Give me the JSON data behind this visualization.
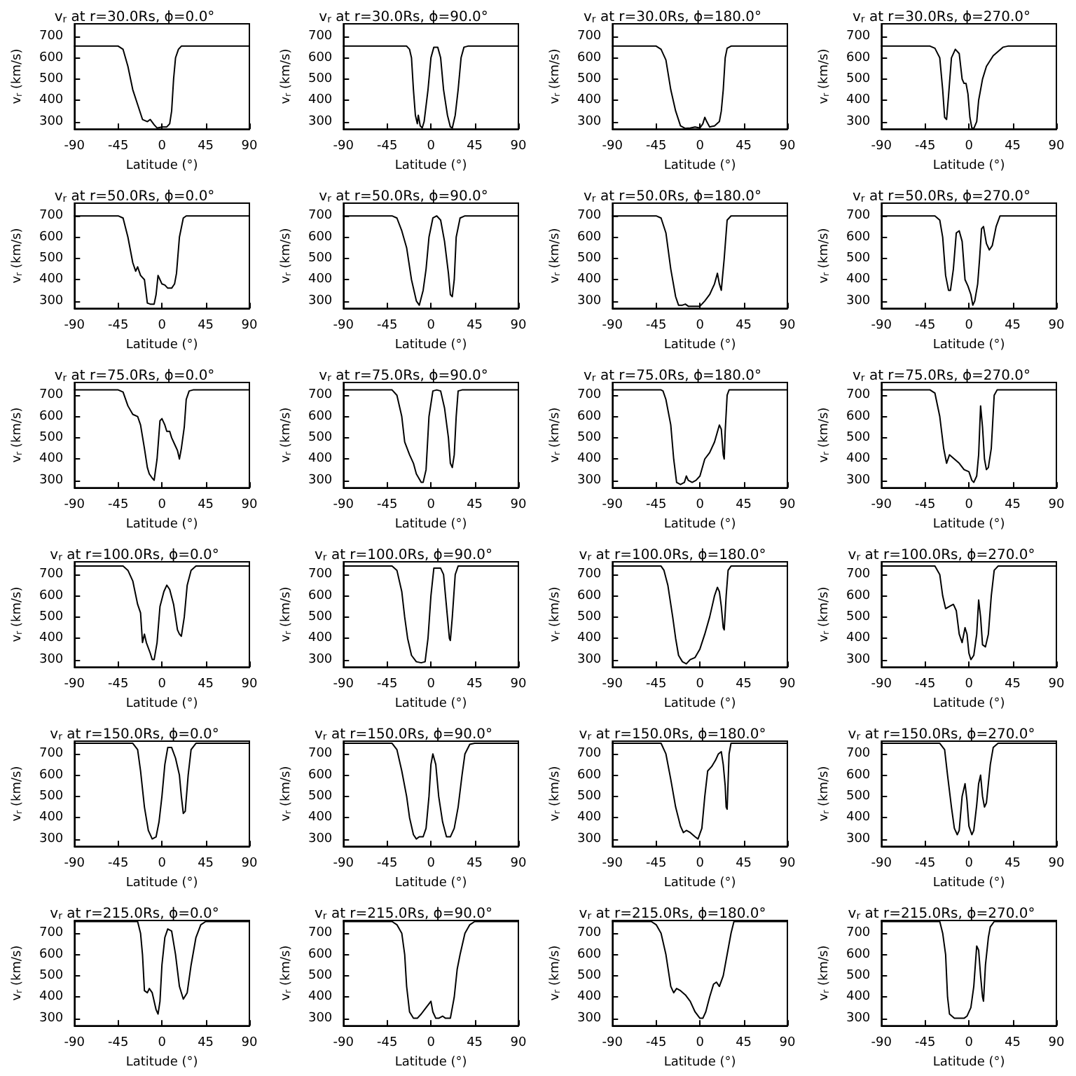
{
  "chart_data": [
    {
      "type": "line",
      "title": "v$_{r}$ at r=30.0Rs, ϕ=0.0°",
      "xlabel": "Latitude (°)",
      "ylabel": "v$_{r}$ (km/s)",
      "xlim": [
        -90,
        90
      ],
      "xticks": [
        -90,
        -45,
        0,
        45,
        90
      ],
      "ylim": [
        265,
        760
      ],
      "yticks": [
        300,
        400,
        500,
        600,
        700
      ],
      "marker": "none",
      "color": "#000000",
      "x": [
        -90,
        -45,
        -40,
        -35,
        -30,
        -25,
        -20,
        -15,
        -12,
        -8,
        -5,
        0,
        5,
        8,
        10,
        12,
        14,
        17,
        20,
        90
      ],
      "values": [
        655,
        655,
        640,
        560,
        450,
        380,
        310,
        300,
        310,
        285,
        270,
        275,
        275,
        290,
        350,
        500,
        600,
        640,
        655,
        655
      ]
    },
    {
      "type": "line",
      "title": "v$_{r}$ at r=30.0Rs, ϕ=90.0°",
      "xlabel": "Latitude (°)",
      "ylabel": "v$_{r}$ (km/s)",
      "xlim": [
        -90,
        90
      ],
      "xticks": [
        -90,
        -45,
        0,
        45,
        90
      ],
      "ylim": [
        265,
        760
      ],
      "yticks": [
        300,
        400,
        500,
        600,
        700
      ],
      "marker": "none",
      "color": "#000000",
      "x": [
        -90,
        -25,
        -22,
        -20,
        -18,
        -16,
        -14,
        -13,
        -11,
        -9,
        -7,
        -3,
        0,
        3,
        7,
        10,
        13,
        17,
        20,
        22,
        25,
        28,
        31,
        34,
        38,
        90
      ],
      "values": [
        655,
        655,
        640,
        600,
        450,
        330,
        290,
        330,
        280,
        270,
        300,
        450,
        600,
        650,
        650,
        600,
        450,
        330,
        275,
        270,
        330,
        450,
        600,
        650,
        655,
        655
      ]
    },
    {
      "type": "line",
      "title": "v$_{r}$ at r=30.0Rs, ϕ=180.0°",
      "xlabel": "Latitude (°)",
      "ylabel": "v$_{r}$ (km/s)",
      "xlim": [
        -90,
        90
      ],
      "xticks": [
        -90,
        -45,
        0,
        45,
        90
      ],
      "ylim": [
        265,
        760
      ],
      "yticks": [
        300,
        400,
        500,
        600,
        700
      ],
      "marker": "none",
      "color": "#000000",
      "x": [
        -90,
        -45,
        -40,
        -35,
        -30,
        -25,
        -20,
        -15,
        -10,
        -5,
        0,
        3,
        5,
        7,
        10,
        15,
        20,
        22,
        24,
        26,
        28,
        32,
        90
      ],
      "values": [
        655,
        655,
        640,
        590,
        450,
        350,
        280,
        268,
        270,
        275,
        270,
        290,
        320,
        300,
        275,
        280,
        300,
        350,
        450,
        600,
        645,
        655,
        655
      ]
    },
    {
      "type": "line",
      "title": "v$_{r}$ at r=30.0Rs, ϕ=270.0°",
      "xlabel": "Latitude (°)",
      "ylabel": "v$_{r}$ (km/s)",
      "xlim": [
        -90,
        90
      ],
      "xticks": [
        -90,
        -45,
        0,
        45,
        90
      ],
      "ylim": [
        265,
        760
      ],
      "yticks": [
        300,
        400,
        500,
        600,
        700
      ],
      "marker": "none",
      "color": "#000000",
      "x": [
        -90,
        -40,
        -35,
        -30,
        -27,
        -25,
        -23,
        -21,
        -18,
        -14,
        -10,
        -7,
        -5,
        -3,
        -1,
        1,
        3,
        5,
        8,
        10,
        14,
        18,
        25,
        35,
        40,
        90
      ],
      "values": [
        655,
        655,
        645,
        600,
        450,
        320,
        310,
        420,
        600,
        640,
        620,
        500,
        480,
        480,
        430,
        320,
        270,
        268,
        300,
        400,
        500,
        560,
        610,
        650,
        655,
        655
      ]
    },
    {
      "type": "line",
      "title": "v$_{r}$ at r=50.0Rs, ϕ=0.0°",
      "xlabel": "Latitude (°)",
      "ylabel": "v$_{r}$ (km/s)",
      "xlim": [
        -90,
        90
      ],
      "xticks": [
        -90,
        -45,
        0,
        45,
        90
      ],
      "ylim": [
        265,
        760
      ],
      "yticks": [
        300,
        400,
        500,
        600,
        700
      ],
      "marker": "none",
      "color": "#000000",
      "x": [
        -90,
        -45,
        -40,
        -35,
        -30,
        -27,
        -25,
        -22,
        -18,
        -15,
        -12,
        -8,
        -6,
        -4,
        -2,
        0,
        3,
        6,
        10,
        13,
        15,
        18,
        22,
        25,
        90
      ],
      "values": [
        700,
        700,
        690,
        600,
        480,
        440,
        460,
        420,
        400,
        290,
        285,
        285,
        330,
        420,
        400,
        380,
        375,
        360,
        360,
        380,
        430,
        600,
        690,
        700,
        700
      ]
    },
    {
      "type": "line",
      "title": "v$_{r}$ at r=50.0Rs, ϕ=90.0°",
      "xlabel": "Latitude (°)",
      "ylabel": "v$_{r}$ (km/s)",
      "xlim": [
        -90,
        90
      ],
      "xticks": [
        -90,
        -45,
        0,
        45,
        90
      ],
      "ylim": [
        265,
        760
      ],
      "yticks": [
        300,
        400,
        500,
        600,
        700
      ],
      "marker": "none",
      "color": "#000000",
      "x": [
        -90,
        -40,
        -35,
        -30,
        -25,
        -20,
        -15,
        -12,
        -8,
        -5,
        -2,
        2,
        6,
        10,
        14,
        18,
        20,
        22,
        24,
        26,
        30,
        35,
        90
      ],
      "values": [
        700,
        700,
        690,
        630,
        550,
        400,
        300,
        280,
        350,
        450,
        600,
        690,
        700,
        680,
        580,
        430,
        330,
        320,
        400,
        600,
        690,
        700,
        700
      ]
    },
    {
      "type": "line",
      "title": "v$_{r}$ at r=50.0Rs, ϕ=180.0°",
      "xlabel": "Latitude (°)",
      "ylabel": "v$_{r}$ (km/s)",
      "xlim": [
        -90,
        90
      ],
      "xticks": [
        -90,
        -45,
        0,
        45,
        90
      ],
      "ylim": [
        265,
        760
      ],
      "yticks": [
        300,
        400,
        500,
        600,
        700
      ],
      "marker": "none",
      "color": "#000000",
      "x": [
        -90,
        -45,
        -40,
        -35,
        -30,
        -25,
        -22,
        -18,
        -15,
        -12,
        -5,
        0,
        5,
        10,
        15,
        18,
        20,
        22,
        25,
        28,
        32,
        90
      ],
      "values": [
        700,
        700,
        690,
        620,
        450,
        320,
        280,
        280,
        285,
        275,
        275,
        275,
        300,
        330,
        380,
        430,
        380,
        350,
        500,
        680,
        700,
        700
      ]
    },
    {
      "type": "line",
      "title": "v$_{r}$ at r=50.0Rs, ϕ=270.0°",
      "xlabel": "Latitude (°)",
      "ylabel": "v$_{r}$ (km/s)",
      "xlim": [
        -90,
        90
      ],
      "xticks": [
        -90,
        -45,
        0,
        45,
        90
      ],
      "ylim": [
        265,
        760
      ],
      "yticks": [
        300,
        400,
        500,
        600,
        700
      ],
      "marker": "none",
      "color": "#000000",
      "x": [
        -90,
        -35,
        -30,
        -27,
        -24,
        -21,
        -19,
        -16,
        -13,
        -10,
        -7,
        -4,
        -1,
        2,
        4,
        6,
        9,
        11,
        13,
        15,
        18,
        21,
        24,
        28,
        32,
        90
      ],
      "values": [
        700,
        700,
        680,
        600,
        420,
        350,
        350,
        450,
        620,
        630,
        580,
        400,
        370,
        330,
        280,
        300,
        380,
        500,
        640,
        650,
        570,
        540,
        560,
        650,
        700,
        700
      ]
    },
    {
      "type": "line",
      "title": "v$_{r}$ at r=75.0Rs, ϕ=0.0°",
      "xlabel": "Latitude (°)",
      "ylabel": "v$_{r}$ (km/s)",
      "xlim": [
        -90,
        90
      ],
      "xticks": [
        -90,
        -45,
        0,
        45,
        90
      ],
      "ylim": [
        265,
        760
      ],
      "yticks": [
        300,
        400,
        500,
        600,
        700
      ],
      "marker": "none",
      "color": "#000000",
      "x": [
        -90,
        -45,
        -40,
        -35,
        -30,
        -25,
        -22,
        -18,
        -15,
        -13,
        -10,
        -8,
        -5,
        -2,
        0,
        3,
        5,
        8,
        10,
        13,
        16,
        18,
        20,
        23,
        25,
        28,
        32,
        90
      ],
      "values": [
        725,
        725,
        715,
        650,
        610,
        600,
        560,
        450,
        360,
        330,
        310,
        300,
        400,
        580,
        590,
        560,
        530,
        530,
        500,
        470,
        440,
        400,
        450,
        550,
        680,
        720,
        725,
        725
      ]
    },
    {
      "type": "line",
      "title": "v$_{r}$ at r=75.0Rs, ϕ=90.0°",
      "xlabel": "Latitude (°)",
      "ylabel": "v$_{r}$ (km/s)",
      "xlim": [
        -90,
        90
      ],
      "xticks": [
        -90,
        -45,
        0,
        45,
        90
      ],
      "ylim": [
        265,
        760
      ],
      "yticks": [
        300,
        400,
        500,
        600,
        700
      ],
      "marker": "none",
      "color": "#000000",
      "x": [
        -90,
        -40,
        -35,
        -30,
        -27,
        -22,
        -18,
        -15,
        -10,
        -8,
        -5,
        -2,
        2,
        6,
        10,
        14,
        18,
        20,
        22,
        24,
        26,
        28,
        32,
        90
      ],
      "values": [
        725,
        725,
        700,
        600,
        480,
        420,
        380,
        330,
        290,
        290,
        350,
        600,
        720,
        725,
        720,
        640,
        500,
        380,
        360,
        420,
        600,
        720,
        725,
        725
      ]
    },
    {
      "type": "line",
      "title": "v$_{r}$ at r=75.0Rs, ϕ=180.0°",
      "xlabel": "Latitude (°)",
      "ylabel": "v$_{r}$ (km/s)",
      "xlim": [
        -90,
        90
      ],
      "xticks": [
        -90,
        -45,
        0,
        45,
        90
      ],
      "ylim": [
        265,
        760
      ],
      "yticks": [
        300,
        400,
        500,
        600,
        700
      ],
      "marker": "none",
      "color": "#000000",
      "x": [
        -90,
        -40,
        -38,
        -35,
        -30,
        -27,
        -24,
        -20,
        -16,
        -14,
        -12,
        -8,
        -4,
        0,
        5,
        10,
        15,
        20,
        22,
        24,
        25,
        26,
        28,
        30,
        90
      ],
      "values": [
        725,
        725,
        720,
        680,
        560,
        400,
        290,
        280,
        290,
        320,
        300,
        290,
        300,
        320,
        400,
        430,
        480,
        560,
        540,
        420,
        400,
        530,
        700,
        725,
        725
      ]
    },
    {
      "type": "line",
      "title": "v$_{r}$ at r=75.0Rs, ϕ=270.0°",
      "xlabel": "Latitude (°)",
      "ylabel": "v$_{r}$ (km/s)",
      "xlim": [
        -90,
        90
      ],
      "xticks": [
        -90,
        -45,
        0,
        45,
        90
      ],
      "ylim": [
        265,
        760
      ],
      "yticks": [
        300,
        400,
        500,
        600,
        700
      ],
      "marker": "none",
      "color": "#000000",
      "x": [
        -90,
        -40,
        -35,
        -30,
        -26,
        -23,
        -20,
        -15,
        -10,
        -5,
        0,
        3,
        5,
        8,
        10,
        12,
        14,
        16,
        18,
        20,
        23,
        26,
        29,
        90
      ],
      "values": [
        725,
        725,
        710,
        600,
        450,
        380,
        420,
        400,
        380,
        350,
        340,
        300,
        290,
        320,
        420,
        650,
        550,
        400,
        350,
        360,
        450,
        700,
        725,
        725
      ]
    },
    {
      "type": "line",
      "title": "v$_{r}$ at r=100.0Rs, ϕ=0.0°",
      "xlabel": "Latitude (°)",
      "ylabel": "v$_{r}$ (km/s)",
      "xlim": [
        -90,
        90
      ],
      "xticks": [
        -90,
        -45,
        0,
        45,
        90
      ],
      "ylim": [
        265,
        760
      ],
      "yticks": [
        300,
        400,
        500,
        600,
        700
      ],
      "marker": "none",
      "color": "#000000",
      "x": [
        -90,
        -40,
        -35,
        -30,
        -25,
        -22,
        -20,
        -18,
        -16,
        -12,
        -10,
        -8,
        -5,
        -2,
        2,
        5,
        8,
        12,
        16,
        18,
        20,
        23,
        26,
        30,
        35,
        90
      ],
      "values": [
        740,
        740,
        720,
        670,
        560,
        520,
        380,
        420,
        380,
        330,
        300,
        300,
        380,
        550,
        620,
        650,
        630,
        560,
        440,
        420,
        410,
        500,
        650,
        720,
        740,
        740
      ]
    },
    {
      "type": "line",
      "title": "v$_{r}$ at r=100.0Rs, ϕ=90.0°",
      "xlabel": "Latitude (°)",
      "ylabel": "v$_{r}$ (km/s)",
      "xlim": [
        -90,
        90
      ],
      "xticks": [
        -90,
        -45,
        0,
        45,
        90
      ],
      "ylim": [
        265,
        760
      ],
      "yticks": [
        300,
        400,
        500,
        600,
        700
      ],
      "marker": "none",
      "color": "#000000",
      "x": [
        -90,
        -40,
        -35,
        -30,
        -27,
        -24,
        -20,
        -15,
        -10,
        -6,
        -3,
        0,
        3,
        10,
        13,
        15,
        17,
        19,
        20,
        22,
        25,
        28,
        90
      ],
      "values": [
        740,
        740,
        720,
        620,
        500,
        400,
        320,
        290,
        285,
        290,
        400,
        600,
        730,
        730,
        700,
        600,
        500,
        400,
        390,
        500,
        700,
        740,
        740
      ]
    },
    {
      "type": "line",
      "title": "v$_{r}$ at r=100.0Rs, ϕ=180.0°",
      "xlabel": "Latitude (°)",
      "ylabel": "v$_{r}$ (km/s)",
      "xlim": [
        -90,
        90
      ],
      "xticks": [
        -90,
        -45,
        0,
        45,
        90
      ],
      "ylim": [
        265,
        760
      ],
      "yticks": [
        300,
        400,
        500,
        600,
        700
      ],
      "marker": "none",
      "color": "#000000",
      "x": [
        -90,
        -40,
        -37,
        -33,
        -28,
        -25,
        -22,
        -18,
        -14,
        -10,
        -5,
        0,
        5,
        10,
        15,
        18,
        20,
        22,
        24,
        25,
        27,
        29,
        32,
        90
      ],
      "values": [
        740,
        740,
        720,
        650,
        500,
        400,
        320,
        290,
        280,
        300,
        310,
        350,
        420,
        500,
        600,
        640,
        620,
        550,
        450,
        440,
        600,
        720,
        740,
        740
      ]
    },
    {
      "type": "line",
      "title": "v$_{r}$ at r=100.0Rs, ϕ=270.0°",
      "xlabel": "Latitude (°)",
      "ylabel": "v$_{r}$ (km/s)",
      "xlim": [
        -90,
        90
      ],
      "xticks": [
        -90,
        -45,
        0,
        45,
        90
      ],
      "ylim": [
        265,
        760
      ],
      "yticks": [
        300,
        400,
        500,
        600,
        700
      ],
      "marker": "none",
      "color": "#000000",
      "x": [
        -90,
        -35,
        -30,
        -27,
        -24,
        -20,
        -16,
        -13,
        -10,
        -7,
        -4,
        -2,
        0,
        2,
        5,
        8,
        10,
        12,
        14,
        17,
        20,
        23,
        26,
        30,
        90
      ],
      "values": [
        740,
        740,
        700,
        600,
        540,
        550,
        560,
        530,
        420,
        380,
        450,
        420,
        330,
        300,
        320,
        420,
        580,
        500,
        370,
        360,
        420,
        600,
        720,
        740,
        740
      ]
    },
    {
      "type": "line",
      "title": "v$_{r}$ at r=150.0Rs, ϕ=0.0°",
      "xlabel": "Latitude (°)",
      "ylabel": "v$_{r}$ (km/s)",
      "xlim": [
        -90,
        90
      ],
      "xticks": [
        -90,
        -45,
        0,
        45,
        90
      ],
      "ylim": [
        265,
        760
      ],
      "yticks": [
        300,
        400,
        500,
        600,
        700
      ],
      "marker": "none",
      "color": "#000000",
      "x": [
        -90,
        -30,
        -25,
        -22,
        -18,
        -14,
        -10,
        -6,
        -3,
        0,
        3,
        6,
        10,
        14,
        18,
        20,
        22,
        24,
        27,
        30,
        35,
        90
      ],
      "values": [
        750,
        750,
        720,
        620,
        450,
        340,
        300,
        310,
        380,
        500,
        650,
        730,
        730,
        680,
        600,
        500,
        420,
        430,
        600,
        720,
        750,
        750
      ]
    },
    {
      "type": "line",
      "title": "v$_{r}$ at r=150.0Rs, ϕ=90.0°",
      "xlabel": "Latitude (°)",
      "ylabel": "v$_{r}$ (km/s)",
      "xlim": [
        -90,
        90
      ],
      "xticks": [
        -90,
        -45,
        0,
        45,
        90
      ],
      "ylim": [
        265,
        760
      ],
      "yticks": [
        300,
        400,
        500,
        600,
        700
      ],
      "marker": "none",
      "color": "#000000",
      "x": [
        -90,
        -40,
        -35,
        -30,
        -25,
        -22,
        -18,
        -15,
        -12,
        -8,
        -5,
        -2,
        0,
        2,
        5,
        8,
        12,
        16,
        20,
        24,
        28,
        32,
        35,
        40,
        45,
        90
      ],
      "values": [
        750,
        750,
        720,
        620,
        500,
        400,
        320,
        300,
        310,
        310,
        350,
        500,
        650,
        700,
        650,
        500,
        380,
        310,
        310,
        350,
        450,
        600,
        700,
        745,
        750,
        750
      ]
    },
    {
      "type": "line",
      "title": "v$_{r}$ at r=150.0Rs, ϕ=180.0°",
      "xlabel": "Latitude (°)",
      "ylabel": "v$_{r}$ (km/s)",
      "xlim": [
        -90,
        90
      ],
      "xticks": [
        -90,
        -45,
        0,
        45,
        90
      ],
      "ylim": [
        265,
        760
      ],
      "yticks": [
        300,
        400,
        500,
        600,
        700
      ],
      "marker": "none",
      "color": "#000000",
      "x": [
        -90,
        -40,
        -35,
        -30,
        -25,
        -20,
        -17,
        -14,
        -10,
        -5,
        -2,
        2,
        5,
        8,
        12,
        16,
        19,
        22,
        24,
        26,
        27,
        28,
        30,
        32,
        90
      ],
      "values": [
        750,
        750,
        700,
        580,
        450,
        360,
        330,
        340,
        330,
        310,
        300,
        350,
        500,
        620,
        640,
        670,
        700,
        710,
        650,
        550,
        450,
        440,
        700,
        750,
        750
      ]
    },
    {
      "type": "line",
      "title": "v$_{r}$ at r=150.0Rs, ϕ=270.0°",
      "xlabel": "Latitude (°)",
      "ylabel": "v$_{r}$ (km/s)",
      "xlim": [
        -90,
        90
      ],
      "xticks": [
        -90,
        -45,
        0,
        45,
        90
      ],
      "ylim": [
        265,
        760
      ],
      "yticks": [
        300,
        400,
        500,
        600,
        700
      ],
      "marker": "none",
      "color": "#000000",
      "x": [
        -90,
        -30,
        -25,
        -22,
        -18,
        -15,
        -12,
        -10,
        -7,
        -4,
        -2,
        0,
        3,
        5,
        8,
        10,
        12,
        14,
        16,
        18,
        22,
        25,
        30,
        90
      ],
      "values": [
        750,
        750,
        720,
        600,
        450,
        350,
        320,
        340,
        500,
        560,
        480,
        360,
        320,
        340,
        460,
        560,
        600,
        500,
        450,
        470,
        650,
        730,
        750,
        750
      ]
    },
    {
      "type": "line",
      "title": "v$_{r}$ at r=215.0Rs, ϕ=0.0°",
      "xlabel": "Latitude (°)",
      "ylabel": "v$_{r}$ (km/s)",
      "xlim": [
        -90,
        90
      ],
      "xticks": [
        -90,
        -45,
        0,
        45,
        90
      ],
      "ylim": [
        265,
        760
      ],
      "yticks": [
        300,
        400,
        500,
        600,
        700
      ],
      "marker": "none",
      "color": "#000000",
      "x": [
        -90,
        -25,
        -22,
        -20,
        -18,
        -15,
        -13,
        -10,
        -6,
        -4,
        -2,
        0,
        3,
        6,
        10,
        14,
        18,
        22,
        26,
        30,
        35,
        40,
        45,
        90
      ],
      "values": [
        755,
        755,
        700,
        600,
        430,
        420,
        440,
        420,
        340,
        320,
        380,
        550,
        680,
        720,
        710,
        600,
        450,
        390,
        420,
        550,
        680,
        740,
        755,
        755
      ]
    },
    {
      "type": "line",
      "title": "v$_{r}$ at r=215.0Rs, ϕ=90.0°",
      "xlabel": "Latitude (°)",
      "ylabel": "v$_{r}$ (km/s)",
      "xlim": [
        -90,
        90
      ],
      "xticks": [
        -90,
        -45,
        0,
        45,
        90
      ],
      "ylim": [
        265,
        760
      ],
      "yticks": [
        300,
        400,
        500,
        600,
        700
      ],
      "marker": "none",
      "color": "#000000",
      "x": [
        -90,
        -40,
        -35,
        -30,
        -27,
        -25,
        -22,
        -18,
        -14,
        -10,
        -5,
        0,
        2,
        5,
        8,
        12,
        15,
        20,
        24,
        27,
        30,
        35,
        40,
        45,
        90
      ],
      "values": [
        755,
        755,
        740,
        700,
        600,
        450,
        330,
        300,
        300,
        320,
        350,
        380,
        330,
        300,
        300,
        310,
        300,
        300,
        400,
        530,
        600,
        700,
        740,
        755,
        755
      ]
    },
    {
      "type": "line",
      "title": "v$_{r}$ at r=215.0Rs, ϕ=180.0°",
      "xlabel": "Latitude (°)",
      "ylabel": "v$_{r}$ (km/s)",
      "xlim": [
        -90,
        90
      ],
      "xticks": [
        -90,
        -45,
        0,
        45,
        90
      ],
      "ylim": [
        265,
        760
      ],
      "yticks": [
        300,
        400,
        500,
        600,
        700
      ],
      "marker": "none",
      "color": "#000000",
      "x": [
        -90,
        -50,
        -45,
        -40,
        -35,
        -30,
        -27,
        -24,
        -20,
        -15,
        -10,
        -5,
        0,
        3,
        6,
        10,
        14,
        17,
        20,
        24,
        28,
        32,
        35,
        90
      ],
      "values": [
        755,
        755,
        740,
        700,
        600,
        450,
        420,
        440,
        430,
        410,
        380,
        330,
        300,
        300,
        330,
        400,
        460,
        470,
        450,
        500,
        600,
        700,
        755,
        755
      ]
    },
    {
      "type": "line",
      "title": "v$_{r}$ at r=215.0Rs, ϕ=270.0°",
      "xlabel": "Latitude (°)",
      "ylabel": "v$_{r}$ (km/s)",
      "xlim": [
        -90,
        90
      ],
      "xticks": [
        -90,
        -45,
        0,
        45,
        90
      ],
      "ylim": [
        265,
        760
      ],
      "yticks": [
        300,
        400,
        500,
        600,
        700
      ],
      "marker": "none",
      "color": "#000000",
      "x": [
        -90,
        -30,
        -27,
        -24,
        -22,
        -20,
        -15,
        -10,
        -5,
        -2,
        2,
        5,
        8,
        10,
        12,
        14,
        15,
        17,
        20,
        22,
        26,
        90
      ],
      "values": [
        755,
        755,
        700,
        600,
        400,
        320,
        300,
        300,
        300,
        310,
        350,
        450,
        640,
        620,
        500,
        400,
        380,
        550,
        680,
        730,
        755,
        755
      ]
    }
  ]
}
